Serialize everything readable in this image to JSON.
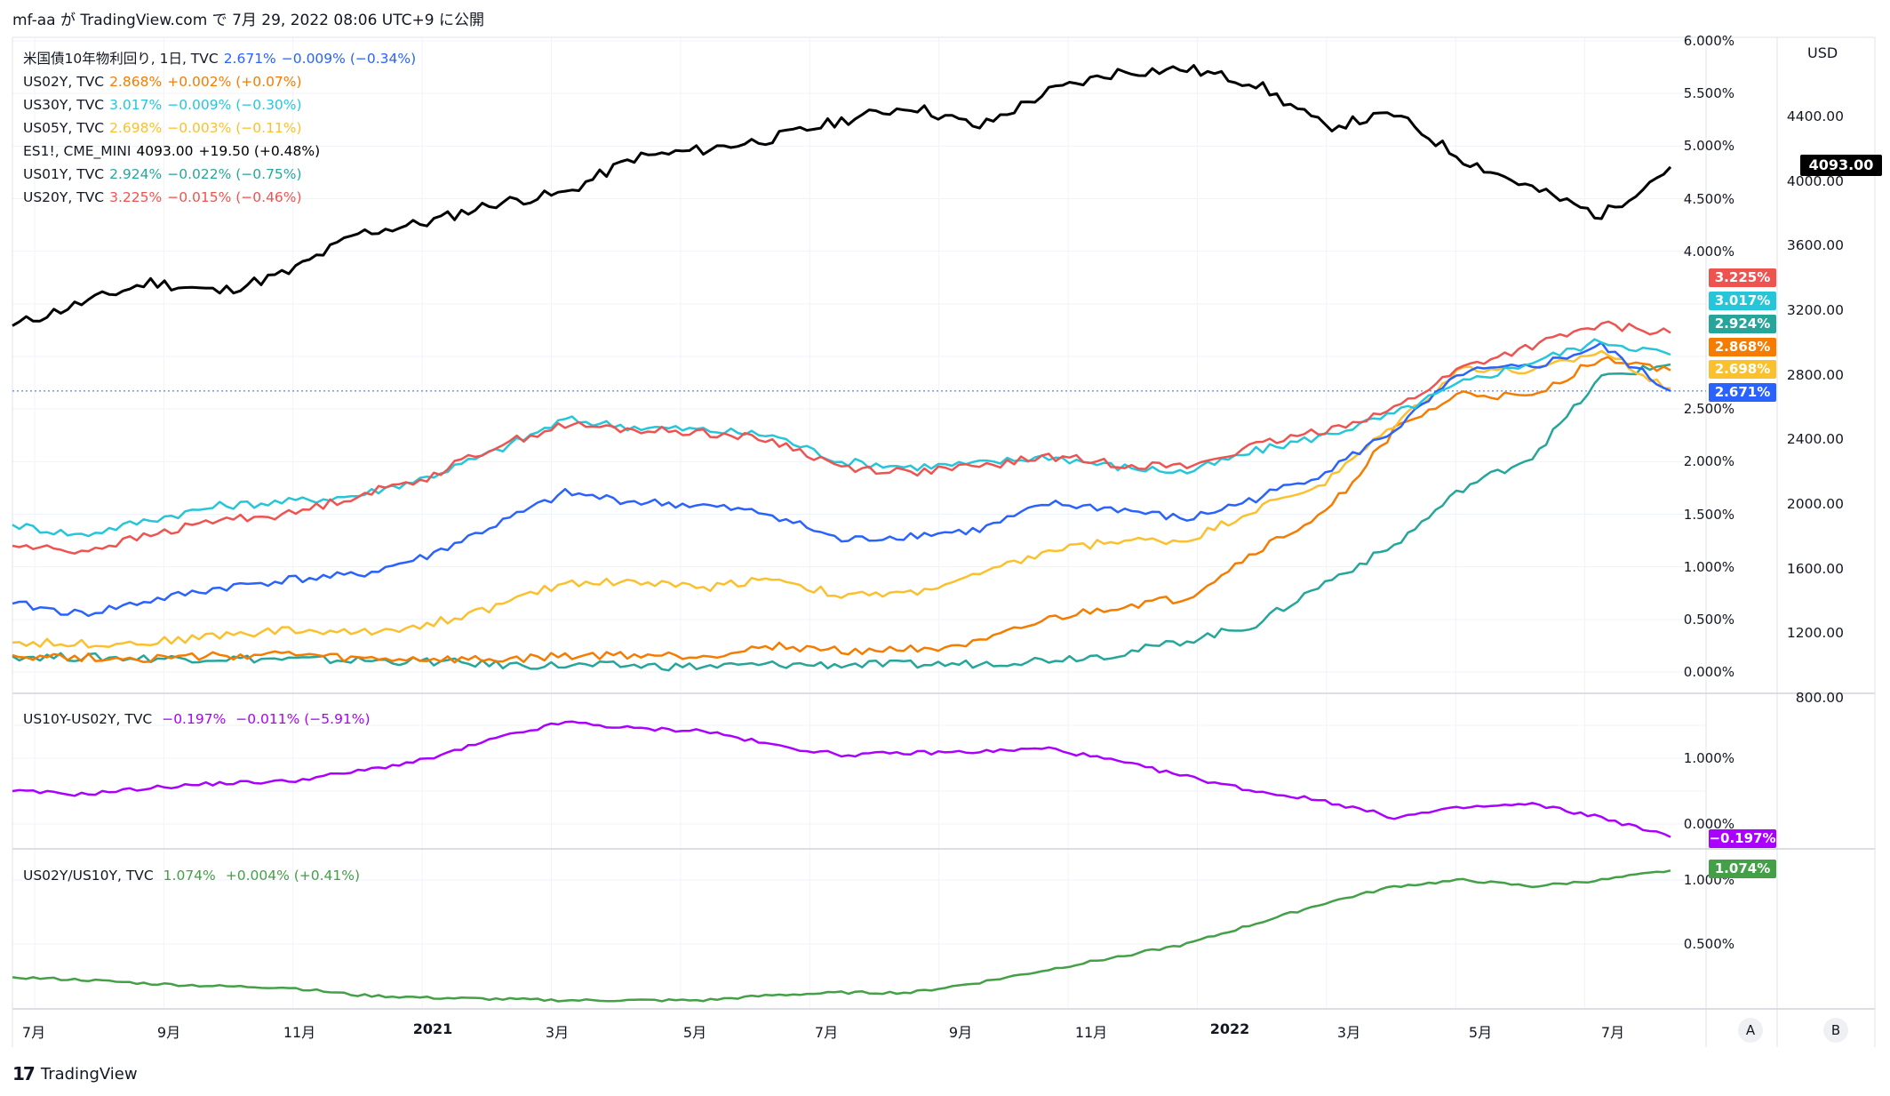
{
  "header": {
    "text": "mf-aa が TradingView.com で 7月 29, 2022 08:06 UTC+9 に公開"
  },
  "footer": {
    "logo_text": "TradingView"
  },
  "axis_buttons": {
    "a": "A",
    "b": "B"
  },
  "main_unit": "USD",
  "legend": [
    {
      "name": "米国債10年物利回り, 1日, TVC",
      "value": "2.671%",
      "change": "−0.009% (−0.34%)",
      "color": "#2962ff"
    },
    {
      "name": "US02Y, TVC",
      "value": "2.868%",
      "change": "+0.002% (+0.07%)",
      "color": "#f57c00"
    },
    {
      "name": "US30Y, TVC",
      "value": "3.017%",
      "change": "−0.009% (−0.30%)",
      "color": "#26c6da"
    },
    {
      "name": "US05Y, TVC",
      "value": "2.698%",
      "change": "−0.003% (−0.11%)",
      "color": "#fbc02d"
    },
    {
      "name": "ES1!, CME_MINI",
      "value": "4093.00",
      "change": "+19.50 (+0.48%)",
      "color": "#000000"
    },
    {
      "name": "US01Y, TVC",
      "value": "2.924%",
      "change": "−0.022% (−0.75%)",
      "color": "#26a69a"
    },
    {
      "name": "US20Y, TVC",
      "value": "3.225%",
      "change": "−0.015% (−0.46%)",
      "color": "#ef5350"
    }
  ],
  "pane2_legend": {
    "name": "US10Y-US02Y, TVC",
    "value": "−0.197%",
    "change": "−0.011% (−5.91%)",
    "color": "#aa00ff"
  },
  "pane3_legend": {
    "name": "US02Y/US10Y, TVC",
    "value": "1.074%",
    "change": "+0.004% (+0.41%)",
    "color": "#43a047"
  },
  "x_ticks": [
    {
      "label": "7月",
      "bold": false
    },
    {
      "label": "9月",
      "bold": false
    },
    {
      "label": "11月",
      "bold": false
    },
    {
      "label": "2021",
      "bold": true
    },
    {
      "label": "3月",
      "bold": false
    },
    {
      "label": "5月",
      "bold": false
    },
    {
      "label": "7月",
      "bold": false
    },
    {
      "label": "9月",
      "bold": false
    },
    {
      "label": "11月",
      "bold": false
    },
    {
      "label": "2022",
      "bold": true
    },
    {
      "label": "3月",
      "bold": false
    },
    {
      "label": "5月",
      "bold": false
    },
    {
      "label": "7月",
      "bold": false
    }
  ],
  "right_ticks_pct": [
    "6.000%",
    "5.500%",
    "5.000%",
    "4.500%",
    "4.000%",
    "2.500%",
    "2.000%",
    "1.500%",
    "1.000%",
    "0.500%",
    "0.000%"
  ],
  "right_ticks_usd": [
    "4400.00",
    "4000.00",
    "3600.00",
    "3200.00",
    "2800.00",
    "2400.00",
    "2000.00",
    "1600.00",
    "1200.00",
    "800.00"
  ],
  "pane2_ticks": [
    "1.000%",
    "0.000%"
  ],
  "pane3_ticks": [
    "1.000%",
    "0.500%"
  ],
  "badges_main": [
    {
      "text": "3.225%",
      "color": "#ef5350"
    },
    {
      "text": "3.017%",
      "color": "#26c6da"
    },
    {
      "text": "2.924%",
      "color": "#26a69a"
    },
    {
      "text": "2.868%",
      "color": "#f57c00"
    },
    {
      "text": "2.698%",
      "color": "#fbc02d"
    },
    {
      "text": "2.671%",
      "color": "#2962ff"
    }
  ],
  "badge_es": "4093.00",
  "badge_pane2": {
    "text": "−0.197%",
    "color": "#aa00ff"
  },
  "badge_pane3": {
    "text": "1.074%",
    "color": "#43a047"
  },
  "chart_data": {
    "type": "line",
    "x": [
      "2020-07",
      "2020-08",
      "2020-09",
      "2020-10",
      "2020-11",
      "2020-12",
      "2021-01",
      "2021-02",
      "2021-03",
      "2021-04",
      "2021-05",
      "2021-06",
      "2021-07",
      "2021-08",
      "2021-09",
      "2021-10",
      "2021-11",
      "2021-12",
      "2022-01",
      "2022-02",
      "2022-03",
      "2022-04",
      "2022-05",
      "2022-06",
      "2022-07"
    ],
    "panes": [
      {
        "name": "main",
        "y_axis_left": {
          "unit": "%",
          "range": [
            0,
            6
          ]
        },
        "y_axis_right": {
          "unit": "USD",
          "range": [
            800,
            4400
          ]
        },
        "series": [
          {
            "name": "ES1!",
            "axis": "USD",
            "color": "#000000",
            "values": [
              3110,
              3250,
              3380,
              3320,
              3440,
              3680,
              3750,
              3870,
              3930,
              4150,
              4200,
              4270,
              4380,
              4470,
              4340,
              4560,
              4680,
              4700,
              4610,
              4340,
              4420,
              4140,
              3960,
              3790,
              4093
            ]
          },
          {
            "name": "US20Y",
            "axis": "%",
            "color": "#ef5350",
            "values": [
              1.2,
              1.15,
              1.3,
              1.45,
              1.5,
              1.68,
              1.85,
              2.15,
              2.35,
              2.3,
              2.28,
              2.2,
              1.95,
              1.9,
              1.95,
              2.05,
              1.98,
              1.95,
              2.15,
              2.3,
              2.5,
              2.9,
              3.1,
              3.3,
              3.225
            ]
          },
          {
            "name": "US30Y",
            "axis": "%",
            "color": "#26c6da",
            "values": [
              1.4,
              1.3,
              1.45,
              1.58,
              1.62,
              1.68,
              1.85,
              2.1,
              2.4,
              2.33,
              2.3,
              2.25,
              2.0,
              1.95,
              1.98,
              2.05,
              1.95,
              1.9,
              2.1,
              2.25,
              2.45,
              2.75,
              2.95,
              3.15,
              3.017
            ]
          },
          {
            "name": "US01Y",
            "axis": "%",
            "color": "#26a69a",
            "values": [
              0.15,
              0.14,
              0.13,
              0.13,
              0.12,
              0.11,
              0.1,
              0.07,
              0.06,
              0.06,
              0.05,
              0.07,
              0.07,
              0.07,
              0.08,
              0.12,
              0.17,
              0.3,
              0.45,
              0.85,
              1.2,
              1.75,
              2.05,
              2.8,
              2.924
            ]
          },
          {
            "name": "US02Y",
            "axis": "%",
            "color": "#f57c00",
            "values": [
              0.16,
              0.14,
              0.13,
              0.15,
              0.17,
              0.12,
              0.12,
              0.11,
              0.15,
              0.16,
              0.15,
              0.25,
              0.2,
              0.22,
              0.27,
              0.5,
              0.62,
              0.7,
              1.15,
              1.5,
              2.3,
              2.65,
              2.6,
              3.0,
              2.868
            ]
          },
          {
            "name": "US05Y",
            "axis": "%",
            "color": "#fbc02d",
            "values": [
              0.28,
              0.27,
              0.28,
              0.35,
              0.4,
              0.37,
              0.45,
              0.62,
              0.85,
              0.86,
              0.8,
              0.9,
              0.72,
              0.75,
              0.92,
              1.15,
              1.25,
              1.25,
              1.55,
              1.8,
              2.35,
              2.9,
              2.85,
              3.05,
              2.698
            ]
          },
          {
            "name": "米国債10年物利回り",
            "axis": "%",
            "color": "#2962ff",
            "values": [
              0.65,
              0.55,
              0.68,
              0.8,
              0.88,
              0.92,
              1.1,
              1.4,
              1.7,
              1.62,
              1.58,
              1.5,
              1.25,
              1.3,
              1.35,
              1.6,
              1.55,
              1.45,
              1.65,
              1.9,
              2.3,
              2.85,
              2.9,
              3.1,
              2.671
            ]
          }
        ]
      },
      {
        "name": "US10Y-US02Y",
        "y_axis": {
          "unit": "%",
          "range": [
            -0.2,
            1.6
          ]
        },
        "series": [
          {
            "name": "US10Y-US02Y",
            "color": "#aa00ff",
            "values": [
              0.5,
              0.45,
              0.55,
              0.62,
              0.65,
              0.8,
              0.98,
              1.3,
              1.55,
              1.45,
              1.42,
              1.2,
              1.05,
              1.08,
              1.1,
              1.15,
              0.95,
              0.72,
              0.5,
              0.35,
              0.1,
              0.25,
              0.3,
              0.1,
              -0.197
            ]
          }
        ]
      },
      {
        "name": "US02Y/US10Y",
        "y_axis": {
          "unit": "%",
          "range": [
            0,
            1.2
          ]
        },
        "series": [
          {
            "name": "US02Y/US10Y",
            "color": "#43a047",
            "values": [
              0.24,
              0.22,
              0.19,
              0.17,
              0.16,
              0.1,
              0.08,
              0.07,
              0.06,
              0.06,
              0.06,
              0.1,
              0.12,
              0.12,
              0.2,
              0.3,
              0.4,
              0.5,
              0.66,
              0.82,
              0.95,
              1.0,
              0.95,
              1.0,
              1.074
            ]
          }
        ]
      }
    ]
  }
}
